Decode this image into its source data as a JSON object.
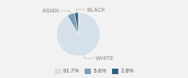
{
  "chart_data": {
    "type": "pie",
    "categories": [
      "WHITE",
      "ASIAN",
      "BLACK"
    ],
    "values": [
      91.7,
      5.6,
      2.8
    ],
    "value_labels": [
      "91.7%",
      "5.6%",
      "2.8%"
    ],
    "colors": [
      "#d6e0ea",
      "#7a9db5",
      "#2e5f7e"
    ],
    "legend": "bottom"
  }
}
